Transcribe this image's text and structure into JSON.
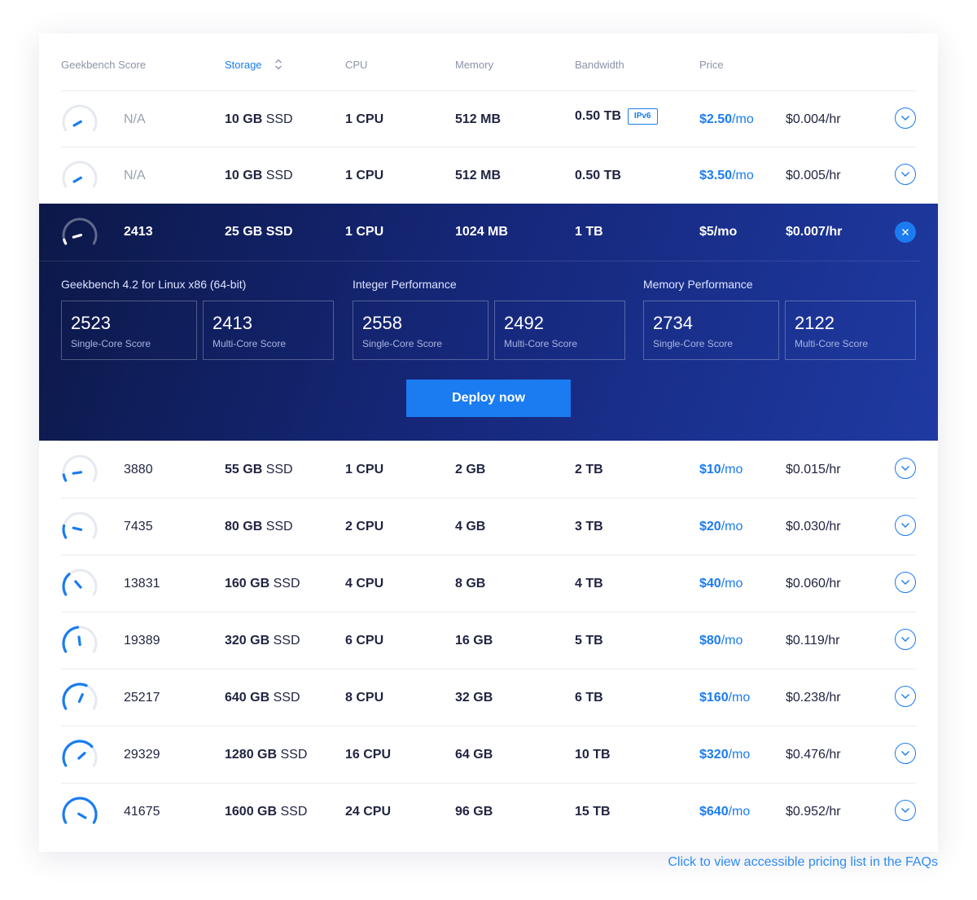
{
  "header": {
    "geekbench": "Geekbench Score",
    "storage": "Storage",
    "cpu": "CPU",
    "memory": "Memory",
    "bandwidth": "Bandwidth",
    "price": "Price"
  },
  "plans": [
    {
      "score": "N/A",
      "score_fraction": 0.0,
      "storage_size": "10 GB",
      "storage_type": "SSD",
      "cpu": "1 CPU",
      "memory": "512 MB",
      "bandwidth": "0.50 TB",
      "badge": "IPv6",
      "price": "$2.50",
      "price_unit": "/mo",
      "hourly": "$0.004/hr"
    },
    {
      "score": "N/A",
      "score_fraction": 0.0,
      "storage_size": "10 GB",
      "storage_type": "SSD",
      "cpu": "1 CPU",
      "memory": "512 MB",
      "bandwidth": "0.50 TB",
      "price": "$3.50",
      "price_unit": "/mo",
      "hourly": "$0.005/hr"
    },
    {
      "score": "2413",
      "score_fraction": 0.06,
      "storage_size": "25 GB",
      "storage_type": "SSD",
      "cpu": "1 CPU",
      "memory": "1024 MB",
      "bandwidth": "1 TB",
      "price": "$5",
      "price_unit": "/mo",
      "hourly": "$0.007/hr",
      "expanded": true
    },
    {
      "score": "3880",
      "score_fraction": 0.09,
      "storage_size": "55 GB",
      "storage_type": "SSD",
      "cpu": "1 CPU",
      "memory": "2 GB",
      "bandwidth": "2 TB",
      "price": "$10",
      "price_unit": "/mo",
      "hourly": "$0.015/hr"
    },
    {
      "score": "7435",
      "score_fraction": 0.18,
      "storage_size": "80 GB",
      "storage_type": "SSD",
      "cpu": "2 CPU",
      "memory": "4 GB",
      "bandwidth": "3 TB",
      "price": "$20",
      "price_unit": "/mo",
      "hourly": "$0.030/hr"
    },
    {
      "score": "13831",
      "score_fraction": 0.33,
      "storage_size": "160 GB",
      "storage_type": "SSD",
      "cpu": "4 CPU",
      "memory": "8 GB",
      "bandwidth": "4 TB",
      "price": "$40",
      "price_unit": "/mo",
      "hourly": "$0.060/hr"
    },
    {
      "score": "19389",
      "score_fraction": 0.47,
      "storage_size": "320 GB",
      "storage_type": "SSD",
      "cpu": "6 CPU",
      "memory": "16 GB",
      "bandwidth": "5 TB",
      "price": "$80",
      "price_unit": "/mo",
      "hourly": "$0.119/hr"
    },
    {
      "score": "25217",
      "score_fraction": 0.6,
      "storage_size": "640 GB",
      "storage_type": "SSD",
      "cpu": "8 CPU",
      "memory": "32 GB",
      "bandwidth": "6 TB",
      "price": "$160",
      "price_unit": "/mo",
      "hourly": "$0.238/hr"
    },
    {
      "score": "29329",
      "score_fraction": 0.7,
      "storage_size": "1280 GB",
      "storage_type": "SSD",
      "cpu": "16 CPU",
      "memory": "64 GB",
      "bandwidth": "10 TB",
      "price": "$320",
      "price_unit": "/mo",
      "hourly": "$0.476/hr"
    },
    {
      "score": "41675",
      "score_fraction": 1.0,
      "storage_size": "1600 GB",
      "storage_type": "SSD",
      "cpu": "24 CPU",
      "memory": "96 GB",
      "bandwidth": "15 TB",
      "price": "$640",
      "price_unit": "/mo",
      "hourly": "$0.952/hr"
    }
  ],
  "details": {
    "groups": [
      {
        "title": "Geekbench 4.2 for Linux x86 (64-bit)",
        "single": "2523",
        "multi": "2413"
      },
      {
        "title": "Integer Performance",
        "single": "2558",
        "multi": "2492"
      },
      {
        "title": "Memory Performance",
        "single": "2734",
        "multi": "2122"
      }
    ],
    "single_label": "Single-Core Score",
    "multi_label": "Multi-Core Score",
    "deploy_label": "Deploy now"
  },
  "footer_link": "Click to view accessible pricing list in the FAQs",
  "colors": {
    "accent": "#1a7cf0",
    "text": "#1f2340",
    "muted": "#8d93a8",
    "expanded_bg_start": "#0c1848",
    "expanded_bg_end": "#1e3aa2"
  },
  "icons": {
    "gauge": "speedometer-gauge-icon",
    "expand": "chevron-down-icon",
    "close": "close-icon",
    "sort": "sort-icon"
  }
}
